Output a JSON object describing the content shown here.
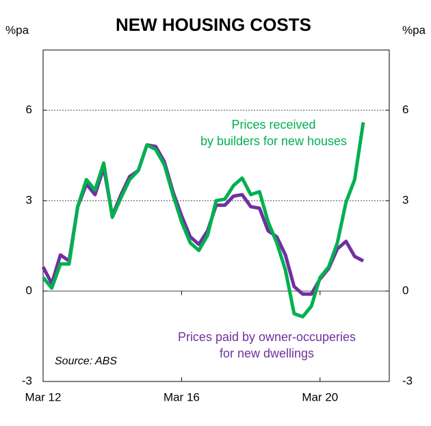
{
  "chart_data": {
    "type": "line",
    "title": "NEW HOUSING COSTS",
    "y_label": "%pa",
    "y2_label": "%pa",
    "source": "Source: ABS",
    "categories": [
      "Mar 12",
      null,
      null,
      null,
      null,
      null,
      null,
      null,
      null,
      null,
      null,
      null,
      null,
      null,
      null,
      null,
      "Mar 16",
      null,
      null,
      null,
      null,
      null,
      null,
      null,
      null,
      null,
      null,
      null,
      null,
      null,
      null,
      null,
      "Mar 20",
      null,
      null,
      null,
      null,
      null,
      null,
      null
    ],
    "series": [
      {
        "name": "Prices received\nby builders for new houses",
        "color": "#00b050",
        "values": [
          0.45,
          0.1,
          0.9,
          0.9,
          2.8,
          3.7,
          3.35,
          4.25,
          2.45,
          3.1,
          3.7,
          4.0,
          4.85,
          4.7,
          4.2,
          3.2,
          2.3,
          1.6,
          1.35,
          1.85,
          3.0,
          3.05,
          3.5,
          3.75,
          3.2,
          3.3,
          2.3,
          1.6,
          0.7,
          -0.75,
          -0.85,
          -0.5,
          0.45,
          0.8,
          1.6,
          2.95,
          3.7,
          5.6,
          null,
          null
        ]
      },
      {
        "name": "Prices paid by owner-occuperies\nfor new dwellings",
        "color": "#7030a0",
        "values": [
          0.8,
          0.25,
          1.2,
          1.0,
          2.8,
          3.55,
          3.2,
          4.1,
          2.5,
          3.2,
          3.8,
          4.0,
          4.85,
          4.8,
          4.3,
          3.3,
          2.5,
          1.8,
          1.55,
          2.0,
          2.85,
          2.85,
          3.15,
          3.2,
          2.8,
          2.75,
          2.0,
          1.8,
          1.2,
          0.15,
          -0.1,
          -0.1,
          0.4,
          0.75,
          1.4,
          1.65,
          1.15,
          1.0,
          null,
          null
        ]
      }
    ],
    "ylim": [
      -3,
      8
    ],
    "yticks": [
      -3,
      0,
      3,
      6
    ],
    "y2lim": [
      -3,
      8
    ],
    "y2ticks": [
      -3,
      0,
      3,
      6
    ],
    "grid": true
  }
}
